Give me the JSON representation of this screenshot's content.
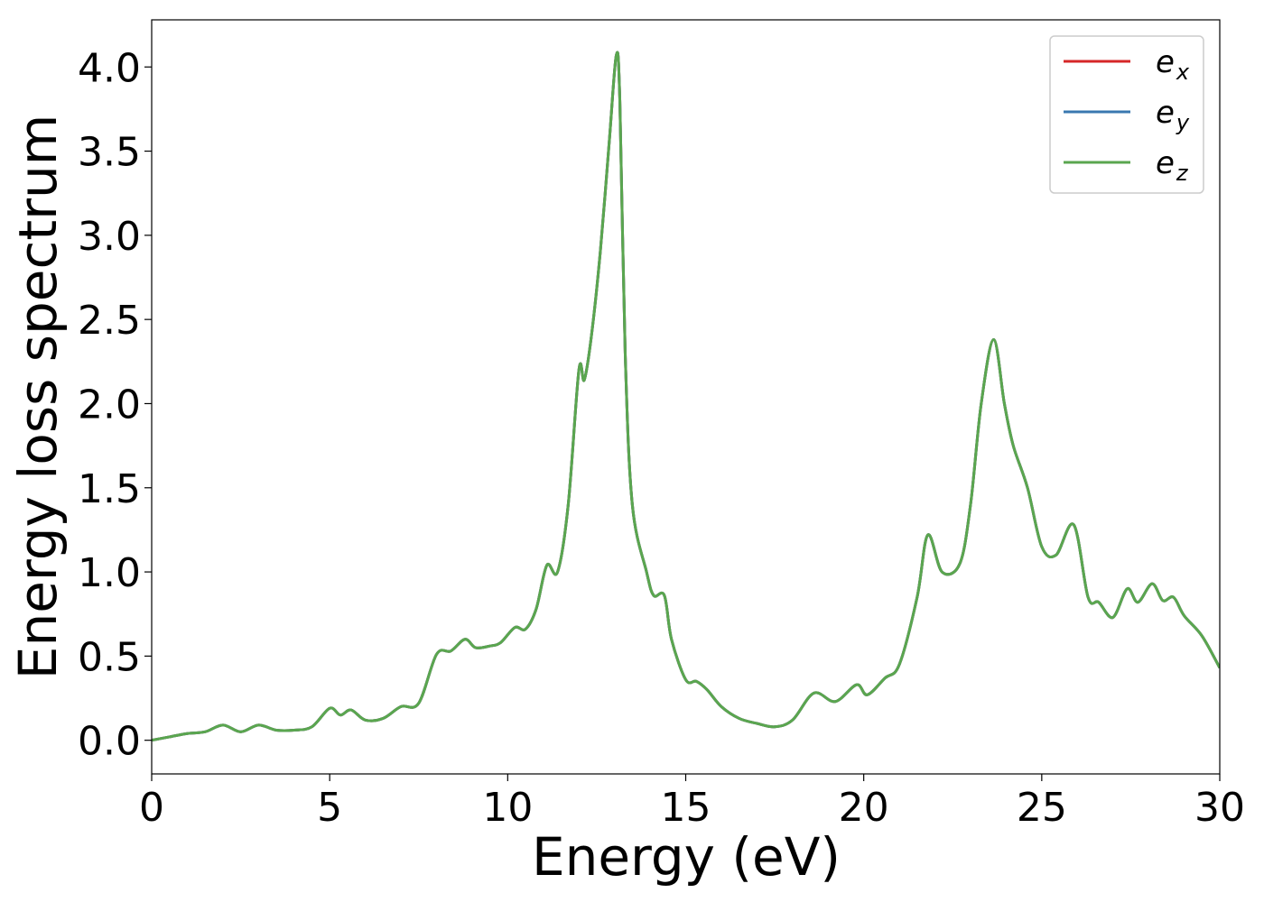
{
  "chart_data": {
    "type": "line",
    "xlabel": "Energy (eV)",
    "ylabel": "Energy loss spectrum",
    "xlim": [
      0,
      30
    ],
    "ylim": [
      -0.2,
      4.28
    ],
    "xticks": [
      0,
      5,
      10,
      15,
      20,
      25,
      30
    ],
    "xtick_labels": [
      "0",
      "5",
      "10",
      "15",
      "20",
      "25",
      "30"
    ],
    "yticks": [
      0.0,
      0.5,
      1.0,
      1.5,
      2.0,
      2.5,
      3.0,
      3.5,
      4.0
    ],
    "ytick_labels": [
      "0.0",
      "0.5",
      "1.0",
      "1.5",
      "2.0",
      "2.5",
      "3.0",
      "3.5",
      "4.0"
    ],
    "grid": false,
    "legend_position": "top-right",
    "series": [
      {
        "name": "e",
        "subscript": "x",
        "color": "#d62728"
      },
      {
        "name": "e",
        "subscript": "y",
        "color": "#3a78b0"
      },
      {
        "name": "e",
        "subscript": "z",
        "color": "#5aa64f"
      }
    ],
    "x": [
      0,
      0.5,
      1.0,
      1.5,
      2.0,
      2.5,
      3.0,
      3.5,
      4.0,
      4.5,
      5.0,
      5.3,
      5.6,
      6.0,
      6.5,
      7.0,
      7.5,
      8.0,
      8.4,
      8.8,
      9.1,
      9.5,
      9.8,
      10.2,
      10.5,
      10.8,
      11.1,
      11.4,
      11.7,
      12.0,
      12.15,
      12.35,
      12.6,
      12.85,
      13.05,
      13.15,
      13.3,
      13.5,
      13.9,
      14.1,
      14.4,
      14.6,
      15.0,
      15.3,
      15.6,
      16.0,
      16.5,
      17.0,
      17.5,
      18.0,
      18.6,
      19.2,
      19.8,
      20.1,
      20.6,
      21.0,
      21.5,
      21.8,
      22.2,
      22.7,
      23.0,
      23.3,
      23.65,
      23.95,
      24.2,
      24.6,
      25.0,
      25.4,
      25.9,
      26.3,
      26.6,
      27.0,
      27.4,
      27.7,
      28.1,
      28.4,
      28.7,
      29.0,
      29.5,
      30.0
    ],
    "values": [
      0.0,
      0.02,
      0.04,
      0.05,
      0.09,
      0.05,
      0.09,
      0.06,
      0.06,
      0.08,
      0.19,
      0.15,
      0.18,
      0.12,
      0.13,
      0.2,
      0.22,
      0.51,
      0.53,
      0.6,
      0.55,
      0.56,
      0.58,
      0.67,
      0.66,
      0.78,
      1.04,
      1.0,
      1.4,
      2.2,
      2.14,
      2.4,
      2.9,
      3.55,
      4.07,
      3.8,
      2.3,
      1.4,
      1.0,
      0.86,
      0.86,
      0.6,
      0.36,
      0.35,
      0.3,
      0.2,
      0.13,
      0.1,
      0.08,
      0.12,
      0.28,
      0.23,
      0.33,
      0.27,
      0.37,
      0.45,
      0.85,
      1.22,
      1.0,
      1.05,
      1.4,
      2.0,
      2.38,
      2.0,
      1.75,
      1.5,
      1.15,
      1.1,
      1.28,
      0.85,
      0.82,
      0.73,
      0.9,
      0.82,
      0.93,
      0.83,
      0.85,
      0.74,
      0.62,
      0.43
    ]
  }
}
